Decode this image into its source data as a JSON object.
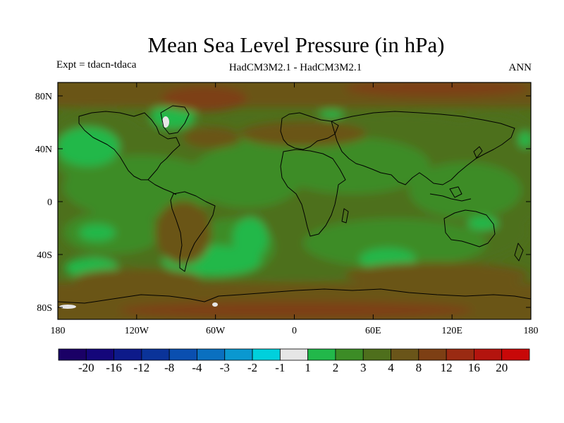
{
  "header": {
    "title": "Mean Sea Level Pressure (in hPa)",
    "expt": "Expt = tdacn-tdaca",
    "model": "HadCM3M2.1 - HadCM3M2.1",
    "season": "ANN"
  },
  "axes": {
    "lat_labels": [
      "80N",
      "40N",
      "0",
      "40S",
      "80S"
    ],
    "lon_labels": [
      "180",
      "120W",
      "60W",
      "0",
      "60E",
      "120E",
      "180"
    ]
  },
  "colorbar": {
    "labels": [
      "-20",
      "-16",
      "-12",
      "-8",
      "-4",
      "-3",
      "-2",
      "-1",
      "1",
      "2",
      "3",
      "4",
      "8",
      "12",
      "16",
      "20"
    ],
    "colors": [
      "#1a0066",
      "#14067a",
      "#0d1a8a",
      "#0a3399",
      "#0a4fb0",
      "#0a70c0",
      "#0a98d0",
      "#00d0dc",
      "#e6e6e6",
      "#22b84a",
      "#3c8c26",
      "#4e6f1c",
      "#6a5519",
      "#7d3f14",
      "#9a2a12",
      "#b3140e",
      "#c80808"
    ]
  },
  "map_colors": {
    "level_2": "#22b84a",
    "level_3": "#3c8c26",
    "level_4": "#4e6f1c",
    "level_8": "#6a5519",
    "level_12": "#7d3f14",
    "coast": "#000000"
  }
}
